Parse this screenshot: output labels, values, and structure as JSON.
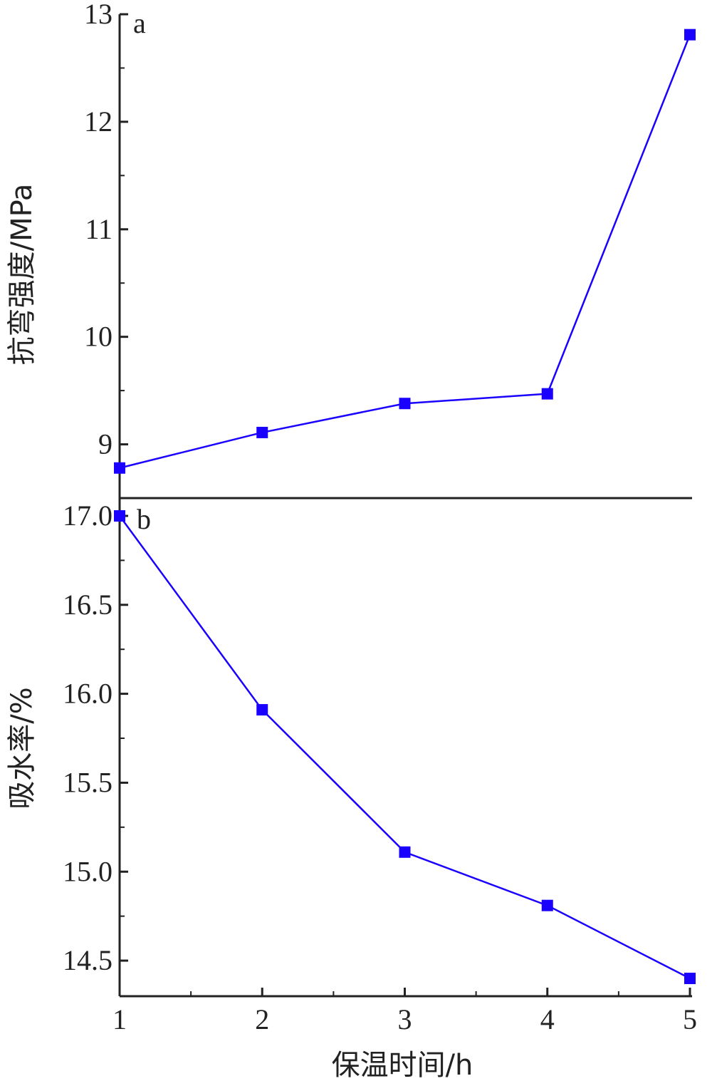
{
  "chart_data": [
    {
      "type": "line",
      "panel_label": "a",
      "x": [
        1,
        2,
        3,
        4,
        5
      ],
      "y": [
        8.78,
        9.11,
        9.38,
        9.47,
        12.81
      ],
      "ylabel": "抗弯强度/MPa",
      "ylim": [
        8.5,
        13
      ],
      "yticks": [
        9,
        10,
        11,
        12,
        13
      ],
      "color": "#1a00ff"
    },
    {
      "type": "line",
      "panel_label": "b",
      "x": [
        1,
        2,
        3,
        4,
        5
      ],
      "y": [
        17.0,
        15.91,
        15.11,
        14.81,
        14.4
      ],
      "ylabel": "吸水率/%",
      "ylim": [
        14.3,
        17.1
      ],
      "yticks": [
        "14.5",
        "15.0",
        "15.5",
        "16.0",
        "16.5",
        "17.0"
      ],
      "color": "#1a00ff"
    }
  ],
  "xaxis": {
    "label": "保温时间/h",
    "ticks": [
      "1",
      "2",
      "3",
      "4",
      "5"
    ],
    "xlim": [
      1,
      5
    ]
  }
}
